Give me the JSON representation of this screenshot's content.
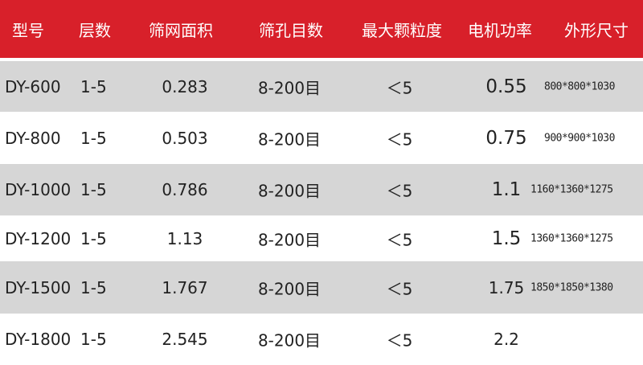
{
  "header": [
    "型号",
    "层数",
    "筛网面积",
    "筛孔目数",
    "最大颗粒度",
    "电机功率",
    "外形尺寸"
  ],
  "rows": [
    {
      "model": "DY-600",
      "layers": "1-5",
      "area": "0.283",
      "mesh": "8-200目",
      "max": "＜5",
      "power": "0.55",
      "size": "800*800*1030"
    },
    {
      "model": "DY-800",
      "layers": "1-5",
      "area": "0.503",
      "mesh": "8-200目",
      "max": "＜5",
      "power": "0.75",
      "size": "900*900*1030"
    },
    {
      "model": "DY-1000",
      "layers": "1-5",
      "area": "0.786",
      "mesh": "8-200目",
      "max": "＜5",
      "power": "1.1",
      "size": "1160*1360*1275"
    },
    {
      "model": "DY-1200",
      "layers": "1-5",
      "area": "1.13",
      "mesh": "8-200目",
      "max": "＜5",
      "power": "1.5",
      "size": "1360*1360*1275"
    },
    {
      "model": "DY-1500",
      "layers": "1-5",
      "area": "1.767",
      "mesh": "8-200目",
      "max": "＜5",
      "power": "1.75",
      "size": "1850*1850*1380"
    },
    {
      "model": "DY-1800",
      "layers": "1-5",
      "area": "2.545",
      "mesh": "8-200目",
      "max": "＜5",
      "power": "2.2",
      "size": ""
    }
  ],
  "colors": {
    "header_bg": "#d8202a",
    "stripe": "#d6d6d6"
  }
}
